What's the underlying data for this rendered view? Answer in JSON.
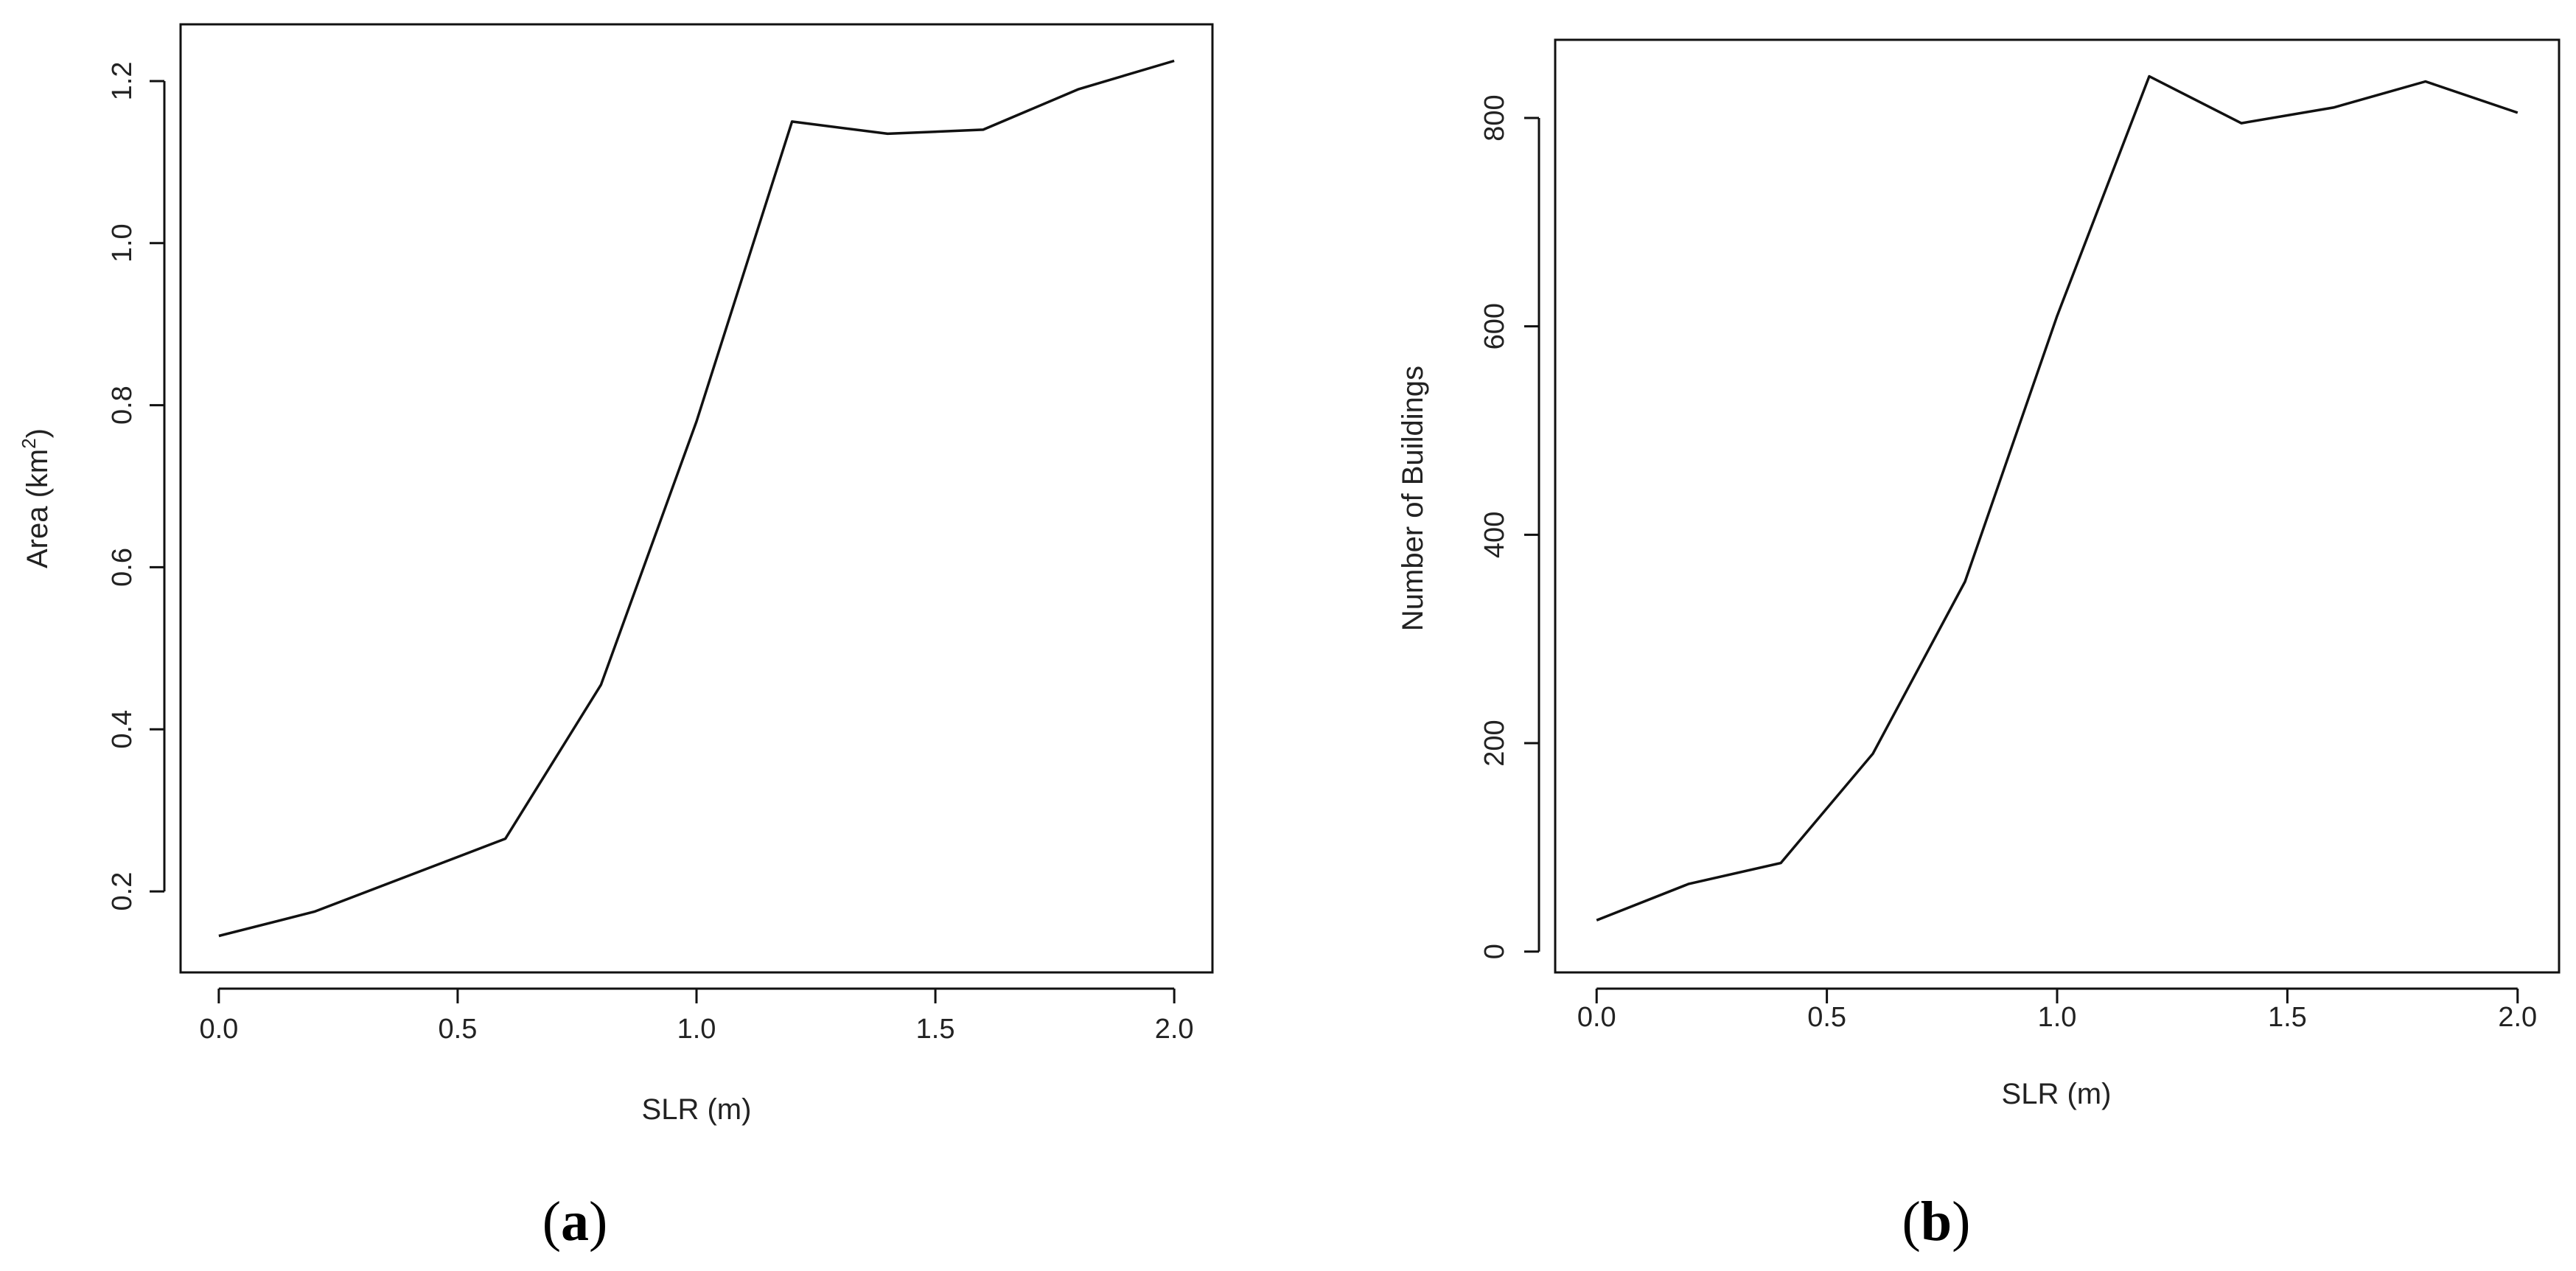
{
  "chart_data": [
    {
      "type": "line",
      "panel_label": "a",
      "xlabel": "SLR (m)",
      "ylabel": "Area (km",
      "ylabel_sup": "2",
      "ylabel_close": ")",
      "x": [
        0.0,
        0.2,
        0.4,
        0.6,
        0.8,
        1.0,
        1.2,
        1.4,
        1.6,
        1.8,
        2.0
      ],
      "values": [
        0.145,
        0.175,
        0.22,
        0.265,
        0.455,
        0.78,
        1.15,
        1.135,
        1.14,
        1.19,
        1.225
      ],
      "xlim": [
        -0.08,
        2.08
      ],
      "ylim": [
        0.1,
        1.27
      ],
      "xticks": [
        0.0,
        0.5,
        1.0,
        1.5,
        2.0
      ],
      "xtick_labels": [
        "0.0",
        "0.5",
        "1.0",
        "1.5",
        "2.0"
      ],
      "yticks": [
        0.2,
        0.4,
        0.6,
        0.8,
        1.0,
        1.2
      ],
      "ytick_labels": [
        "0.2",
        "0.4",
        "0.6",
        "0.8",
        "1.0",
        "1.2"
      ],
      "grid": false,
      "line_color": "#111111"
    },
    {
      "type": "line",
      "panel_label": "b",
      "xlabel": "SLR (m)",
      "ylabel": "Number of Buildings",
      "x": [
        0.0,
        0.2,
        0.4,
        0.6,
        0.8,
        1.0,
        1.2,
        1.4,
        1.6,
        1.8,
        2.0
      ],
      "values": [
        30,
        65,
        85,
        190,
        355,
        610,
        840,
        795,
        810,
        835,
        805
      ],
      "xlim": [
        -0.09,
        2.09
      ],
      "ylim": [
        -20,
        875
      ],
      "xticks": [
        0.0,
        0.5,
        1.0,
        1.5,
        2.0
      ],
      "xtick_labels": [
        "0.0",
        "0.5",
        "1.0",
        "1.5",
        "2.0"
      ],
      "yticks": [
        0,
        200,
        400,
        600,
        800
      ],
      "ytick_labels": [
        "0",
        "200",
        "400",
        "600",
        "800"
      ],
      "grid": false,
      "line_color": "#111111"
    }
  ]
}
